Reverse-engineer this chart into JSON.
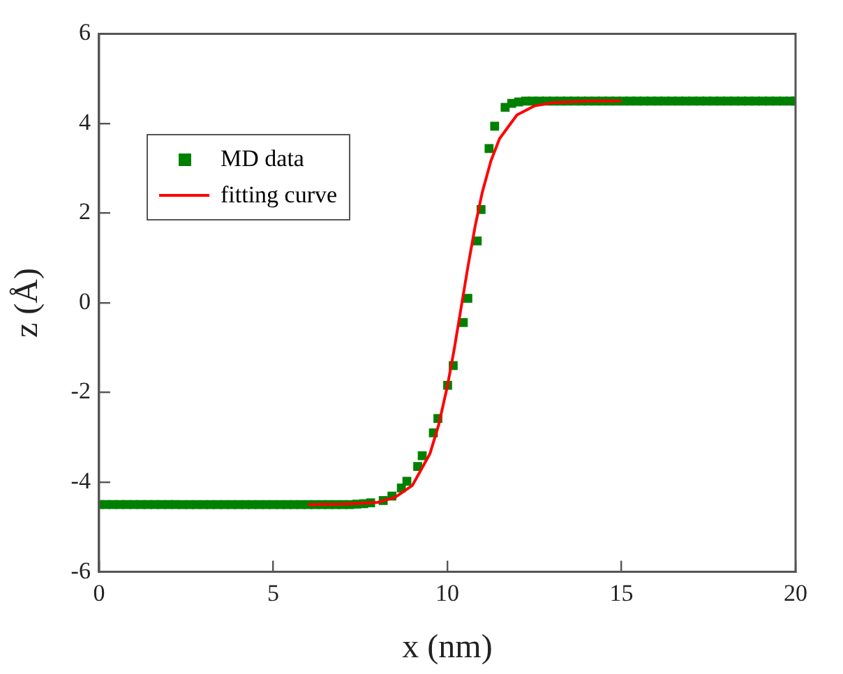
{
  "chart_data": {
    "type": "scatter",
    "xlabel": "x (nm)",
    "ylabel": "z (Å)",
    "xlim": [
      0,
      20
    ],
    "ylim": [
      -6,
      6
    ],
    "xticks": [
      0,
      5,
      10,
      15,
      20
    ],
    "yticks": [
      -6,
      -4,
      -2,
      0,
      2,
      4,
      6
    ],
    "grid": false,
    "legend": "top left",
    "marker": "square",
    "series": [
      {
        "name": "MD data",
        "type": "scatter",
        "color": "#008000",
        "x": [
          0,
          0.2,
          0.4,
          0.6,
          0.8,
          1,
          1.2,
          1.4,
          1.6,
          1.8,
          2,
          2.2,
          2.4,
          2.6,
          2.8,
          3,
          3.2,
          3.4,
          3.6,
          3.8,
          4,
          4.2,
          4.4,
          4.6,
          4.8,
          5,
          5.2,
          5.4,
          5.6,
          5.8,
          6,
          6.2,
          6.4,
          6.6,
          6.8,
          7,
          7.2,
          7.4,
          7.6,
          7.8,
          8.16,
          8.41,
          8.68,
          8.84,
          9.15,
          9.28,
          9.6,
          9.73,
          10.01,
          10.17,
          10.46,
          10.59,
          10.86,
          10.97,
          11.2,
          11.36,
          11.66,
          11.85,
          12.05,
          12.25,
          12.45,
          12.65,
          12.85,
          13.05,
          13.25,
          13.45,
          13.65,
          13.85,
          14.05,
          14.25,
          14.45,
          14.65,
          14.85,
          15.05,
          15.25,
          15.45,
          15.65,
          15.85,
          16.05,
          16.25,
          16.45,
          16.65,
          16.85,
          17.05,
          17.25,
          17.45,
          17.65,
          17.85,
          18.05,
          18.25,
          18.45,
          18.65,
          18.85,
          19.05,
          19.25,
          19.45,
          19.65,
          19.85,
          20
        ],
        "values": [
          -4.5,
          -4.5,
          -4.5,
          -4.5,
          -4.5,
          -4.5,
          -4.5,
          -4.5,
          -4.5,
          -4.5,
          -4.5,
          -4.5,
          -4.5,
          -4.5,
          -4.5,
          -4.5,
          -4.5,
          -4.5,
          -4.5,
          -4.5,
          -4.5,
          -4.5,
          -4.5,
          -4.5,
          -4.5,
          -4.5,
          -4.5,
          -4.5,
          -4.5,
          -4.5,
          -4.5,
          -4.5,
          -4.5,
          -4.5,
          -4.5,
          -4.5,
          -4.5,
          -4.49,
          -4.48,
          -4.46,
          -4.41,
          -4.31,
          -4.13,
          -3.98,
          -3.65,
          -3.41,
          -2.9,
          -2.58,
          -1.84,
          -1.4,
          -0.44,
          0.1,
          1.38,
          2.08,
          3.44,
          3.94,
          4.36,
          4.45,
          4.48,
          4.5,
          4.5,
          4.5,
          4.5,
          4.5,
          4.5,
          4.5,
          4.5,
          4.5,
          4.5,
          4.5,
          4.5,
          4.5,
          4.5,
          4.5,
          4.5,
          4.5,
          4.5,
          4.5,
          4.5,
          4.5,
          4.5,
          4.5,
          4.5,
          4.5,
          4.5,
          4.5,
          4.5,
          4.5,
          4.5,
          4.5,
          4.5,
          4.5,
          4.5,
          4.5,
          4.5,
          4.5,
          4.5,
          4.5,
          4.5
        ]
      },
      {
        "name": "fitting curve",
        "type": "line",
        "color": "#ff0000",
        "marker": "none",
        "line_style": "solid",
        "x": [
          6,
          7,
          8,
          8.5,
          9,
          9.5,
          9.75,
          10,
          10.2,
          10.42,
          10.6,
          10.8,
          11,
          11.25,
          11.5,
          12,
          12.5,
          13,
          14,
          15
        ],
        "values": [
          -4.5,
          -4.49,
          -4.45,
          -4.34,
          -4.07,
          -3.37,
          -2.73,
          -1.87,
          -1.03,
          0,
          0.84,
          1.71,
          2.45,
          3.16,
          3.66,
          4.19,
          4.39,
          4.46,
          4.5,
          4.5
        ]
      }
    ]
  }
}
